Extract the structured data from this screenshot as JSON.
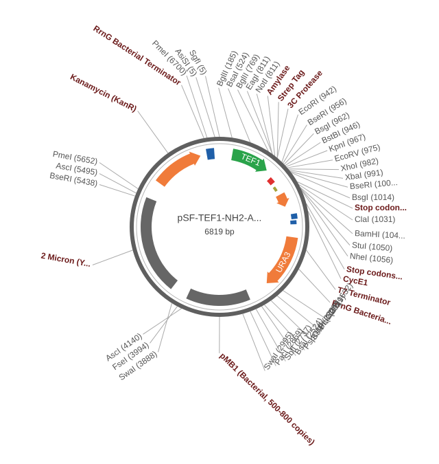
{
  "map": {
    "name": "pSF-TEF1-NH2-A...",
    "size": "6819 bp"
  },
  "features": [
    {
      "label": "TEF1"
    },
    {
      "label": "URA3"
    }
  ],
  "labels": [
    {
      "text": "RrnG Bacterial Terminator",
      "bold": true,
      "color": "#6b1a1a"
    },
    {
      "text": "PmeI (6700)",
      "bold": false,
      "color": "#555555"
    },
    {
      "text": "AsiSI (5)",
      "bold": false,
      "color": "#555555"
    },
    {
      "text": "SgfI (5)",
      "bold": false,
      "color": "#555555"
    },
    {
      "text": "Kanamycin (KanR)",
      "bold": true,
      "color": "#6b1a1a"
    },
    {
      "text": "BglII (185)",
      "bold": false,
      "color": "#555555"
    },
    {
      "text": "BsaI (524)",
      "bold": false,
      "color": "#555555"
    },
    {
      "text": "BglII (769)",
      "bold": false,
      "color": "#555555"
    },
    {
      "text": "EagI (811)",
      "bold": false,
      "color": "#555555"
    },
    {
      "text": "NotI (811)",
      "bold": false,
      "color": "#555555"
    },
    {
      "text": "Amylase",
      "bold": true,
      "color": "#6b1a1a"
    },
    {
      "text": "Strep Tag",
      "bold": true,
      "color": "#6b1a1a"
    },
    {
      "text": "3C Protease",
      "bold": true,
      "color": "#6b1a1a"
    },
    {
      "text": "EcoRI (942)",
      "bold": false,
      "color": "#555555"
    },
    {
      "text": "BseRI (956)",
      "bold": false,
      "color": "#555555"
    },
    {
      "text": "BsgI (962)",
      "bold": false,
      "color": "#555555"
    },
    {
      "text": "BstBI (946)",
      "bold": false,
      "color": "#555555"
    },
    {
      "text": "KpnI (967)",
      "bold": false,
      "color": "#555555"
    },
    {
      "text": "EcoRV (975)",
      "bold": false,
      "color": "#555555"
    },
    {
      "text": "XhoI (982)",
      "bold": false,
      "color": "#555555"
    },
    {
      "text": "XbaI (991)",
      "bold": false,
      "color": "#555555"
    },
    {
      "text": "BseRI (100...",
      "bold": false,
      "color": "#555555"
    },
    {
      "text": "BsgI (1014)",
      "bold": false,
      "color": "#555555"
    },
    {
      "text": "Stop codon...",
      "bold": true,
      "color": "#6b1a1a"
    },
    {
      "text": "ClaI (1031)",
      "bold": false,
      "color": "#555555"
    },
    {
      "text": "BamHI (104...",
      "bold": false,
      "color": "#555555"
    },
    {
      "text": "StuI (1050)",
      "bold": false,
      "color": "#555555"
    },
    {
      "text": "NheI (1056)",
      "bold": false,
      "color": "#555555"
    },
    {
      "text": "Stop codons...",
      "bold": true,
      "color": "#6b1a1a"
    },
    {
      "text": "CycE1",
      "bold": true,
      "color": "#6b1a1a"
    },
    {
      "text": "T7 Terminator",
      "bold": true,
      "color": "#6b1a1a"
    },
    {
      "text": "RrnG Bacteria...",
      "bold": true,
      "color": "#6b1a1a"
    },
    {
      "text": "SbfI (1632)",
      "bold": false,
      "color": "#555555"
    },
    {
      "text": "PciI (2029)",
      "bold": false,
      "color": "#555555"
    },
    {
      "text": "BstBI (2115)",
      "bold": false,
      "color": "#555555"
    },
    {
      "text": "PspOMI (2224)",
      "bold": false,
      "color": "#555555"
    },
    {
      "text": "BsaI (2524)",
      "bold": false,
      "color": "#555555"
    },
    {
      "text": "SbfI (2737)",
      "bold": false,
      "color": "#555555"
    },
    {
      "text": "PacI (2869)",
      "bold": false,
      "color": "#555555"
    },
    {
      "text": "SwaI (2995)",
      "bold": false,
      "color": "#555555"
    },
    {
      "text": "pMB1 (Bacterial, 500-800 copies)",
      "bold": true,
      "color": "#6b1a1a"
    },
    {
      "text": "AscI (4140)",
      "bold": false,
      "color": "#555555"
    },
    {
      "text": "FseI (3994)",
      "bold": false,
      "color": "#555555"
    },
    {
      "text": "SwaI (3888)",
      "bold": false,
      "color": "#555555"
    },
    {
      "text": "2 Micron (Y...",
      "bold": true,
      "color": "#6b1a1a"
    },
    {
      "text": "PmeI (5652)",
      "bold": false,
      "color": "#555555"
    },
    {
      "text": "AscI (5495)",
      "bold": false,
      "color": "#555555"
    },
    {
      "text": "BseRI (5438)",
      "bold": false,
      "color": "#555555"
    }
  ]
}
